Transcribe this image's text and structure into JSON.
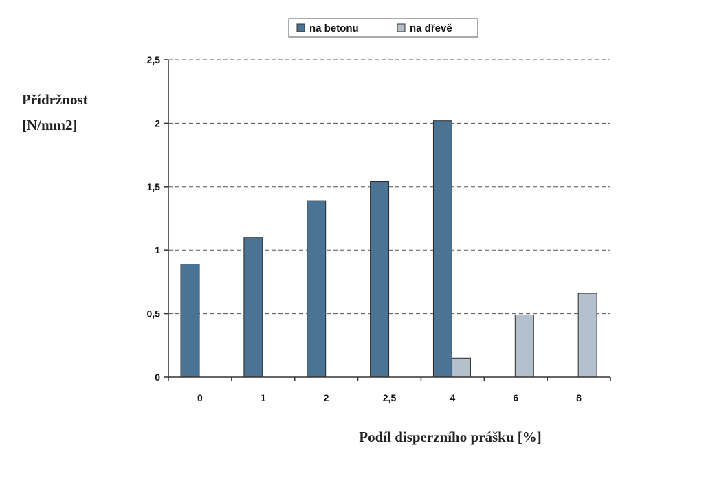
{
  "chart_data": {
    "type": "bar",
    "categories": [
      "0",
      "1",
      "2",
      "2,5",
      "4",
      "6",
      "8"
    ],
    "series": [
      {
        "name": "na betonu",
        "color": "#4a7394",
        "values": [
          0.89,
          1.1,
          1.39,
          1.54,
          2.02,
          null,
          null
        ]
      },
      {
        "name": "na dřevě",
        "color": "#b4c0cc",
        "values": [
          null,
          null,
          null,
          null,
          0.15,
          0.49,
          0.66
        ]
      }
    ],
    "ylabel_lines": [
      "Přídržnost",
      "[N/mm2]"
    ],
    "xlabel": "Podíl disperzního prášku [%]",
    "ylim": [
      0,
      2.5
    ],
    "yticks": [
      0,
      0.5,
      1,
      1.5,
      2,
      2.5
    ],
    "ytick_labels": [
      "0",
      "0,5",
      "1",
      "1,5",
      "2",
      "2,5"
    ],
    "grid": "horizontal-dashed",
    "legend_position": "top"
  }
}
